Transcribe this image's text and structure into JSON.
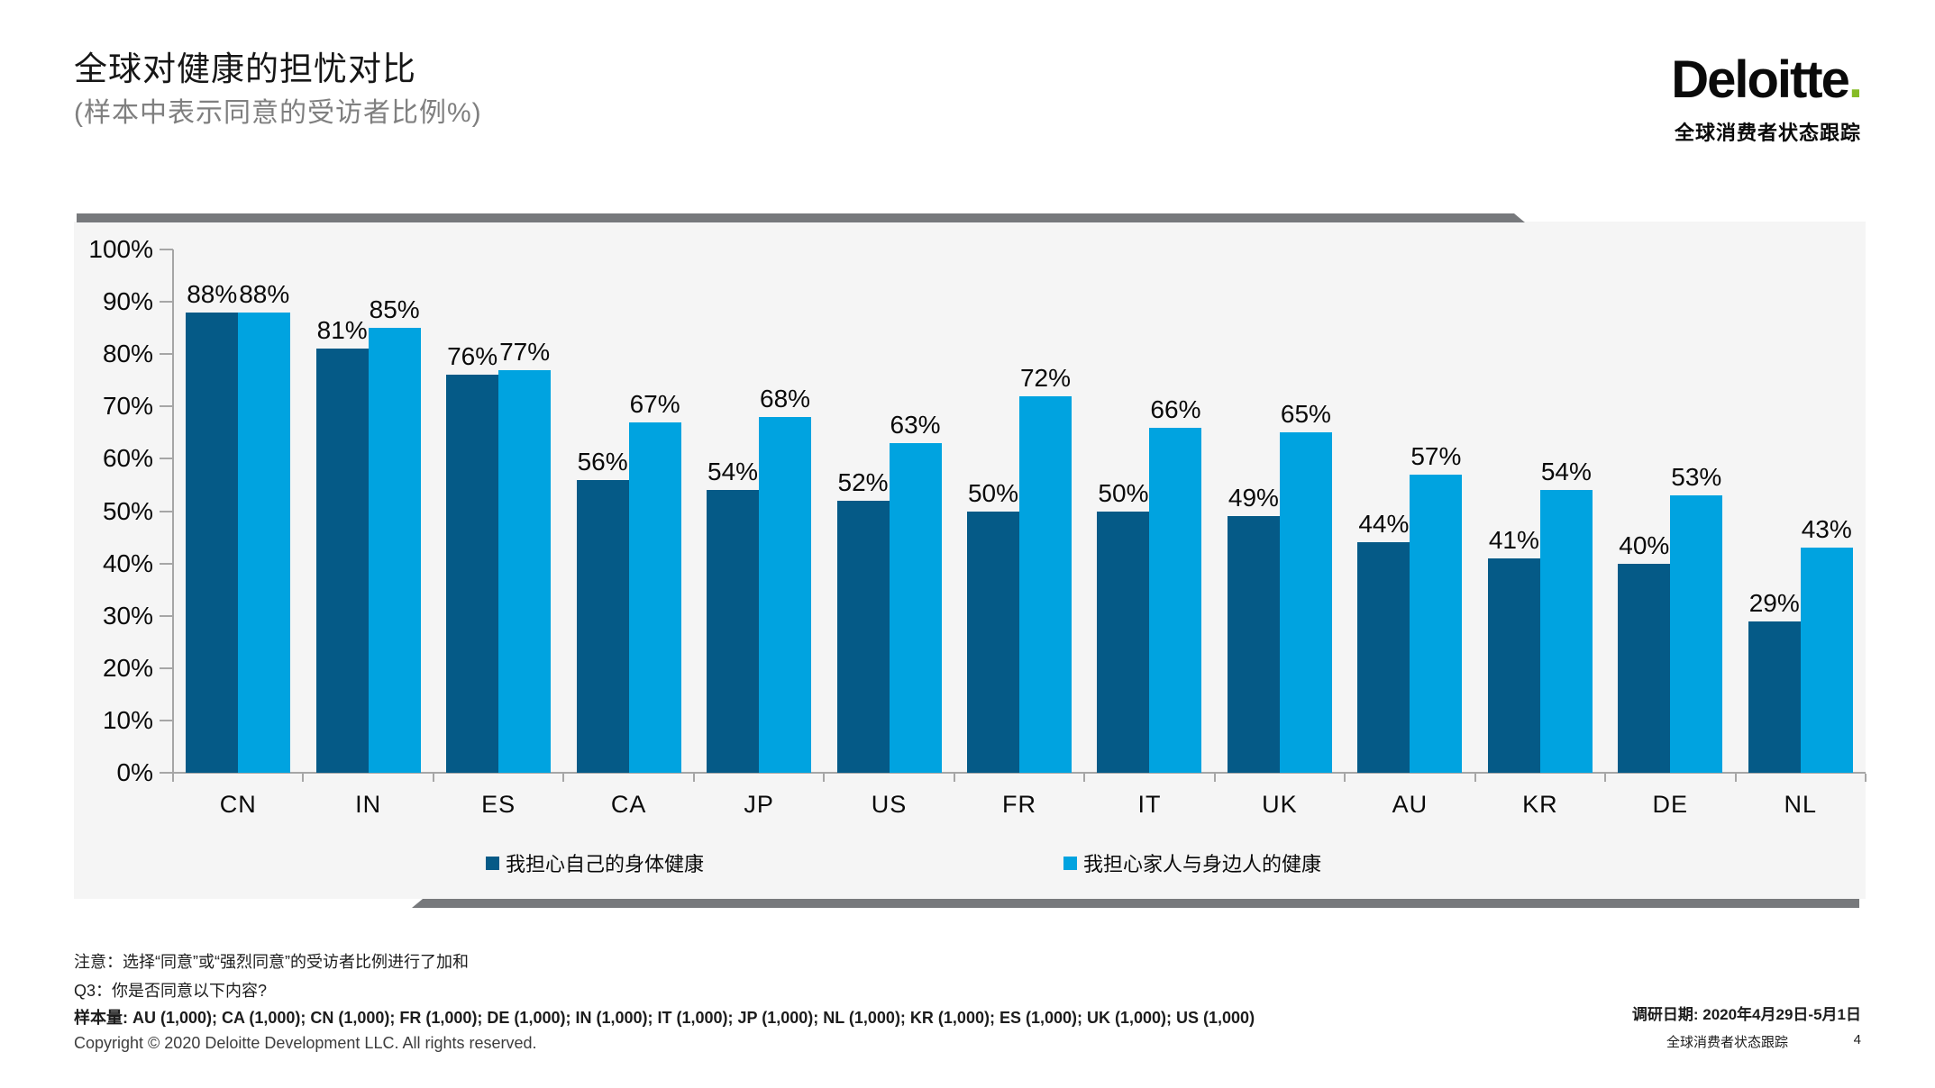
{
  "header": {
    "title": "全球对健康的担忧对比",
    "subtitle": "(样本中表示同意的受访者比例%)",
    "logo_text": "Deloitte",
    "logo_dot": ".",
    "logo_tagline": "全球消费者状态跟踪"
  },
  "chart_data": {
    "type": "bar",
    "categories": [
      "CN",
      "IN",
      "ES",
      "CA",
      "JP",
      "US",
      "FR",
      "IT",
      "UK",
      "AU",
      "KR",
      "DE",
      "NL"
    ],
    "series": [
      {
        "name": "我担心自己的身体健康",
        "color": "#055a87",
        "values": [
          88,
          81,
          76,
          56,
          54,
          52,
          50,
          50,
          49,
          44,
          41,
          40,
          29
        ]
      },
      {
        "name": "我担心家人与身边人的健康",
        "color": "#00a3e0",
        "values": [
          88,
          85,
          77,
          67,
          68,
          63,
          72,
          66,
          65,
          57,
          54,
          53,
          43
        ]
      }
    ],
    "title": "全球对健康的担忧对比",
    "subtitle": "(样本中表示同意的受访者比例%)",
    "xlabel": "",
    "ylabel": "",
    "ylim": [
      0,
      100
    ],
    "ytick_step": 10,
    "tick_suffix": "%",
    "value_suffix": "%",
    "grid": false,
    "legend_position": "bottom"
  },
  "notes": {
    "note_line": "注意：选择“同意”或“强烈同意”的受访者比例进行了加和",
    "question_line": "Q3：你是否同意以下内容?",
    "sample_line": "样本量: AU (1,000); CA (1,000); CN (1,000); FR (1,000); DE (1,000); IN (1,000); IT (1,000); JP (1,000); NL (1,000); KR (1,000); ES (1,000); UK (1,000); US (1,000)"
  },
  "footer": {
    "copyright": "Copyright © 2020 Deloitte Development LLC. All rights reserved.",
    "survey_date": "调研日期: 2020年4月29日-5月1日",
    "tracker_label": "全球消费者状态跟踪",
    "page_number": "4"
  },
  "colors": {
    "series1_dark_blue": "#055a87",
    "series2_light_blue": "#00a3e0",
    "logo_dot_green": "#86bc25",
    "chart_background": "#f5f5f5",
    "shadow_gray": "#77797c",
    "axis_gray": "#a6a6a6"
  }
}
